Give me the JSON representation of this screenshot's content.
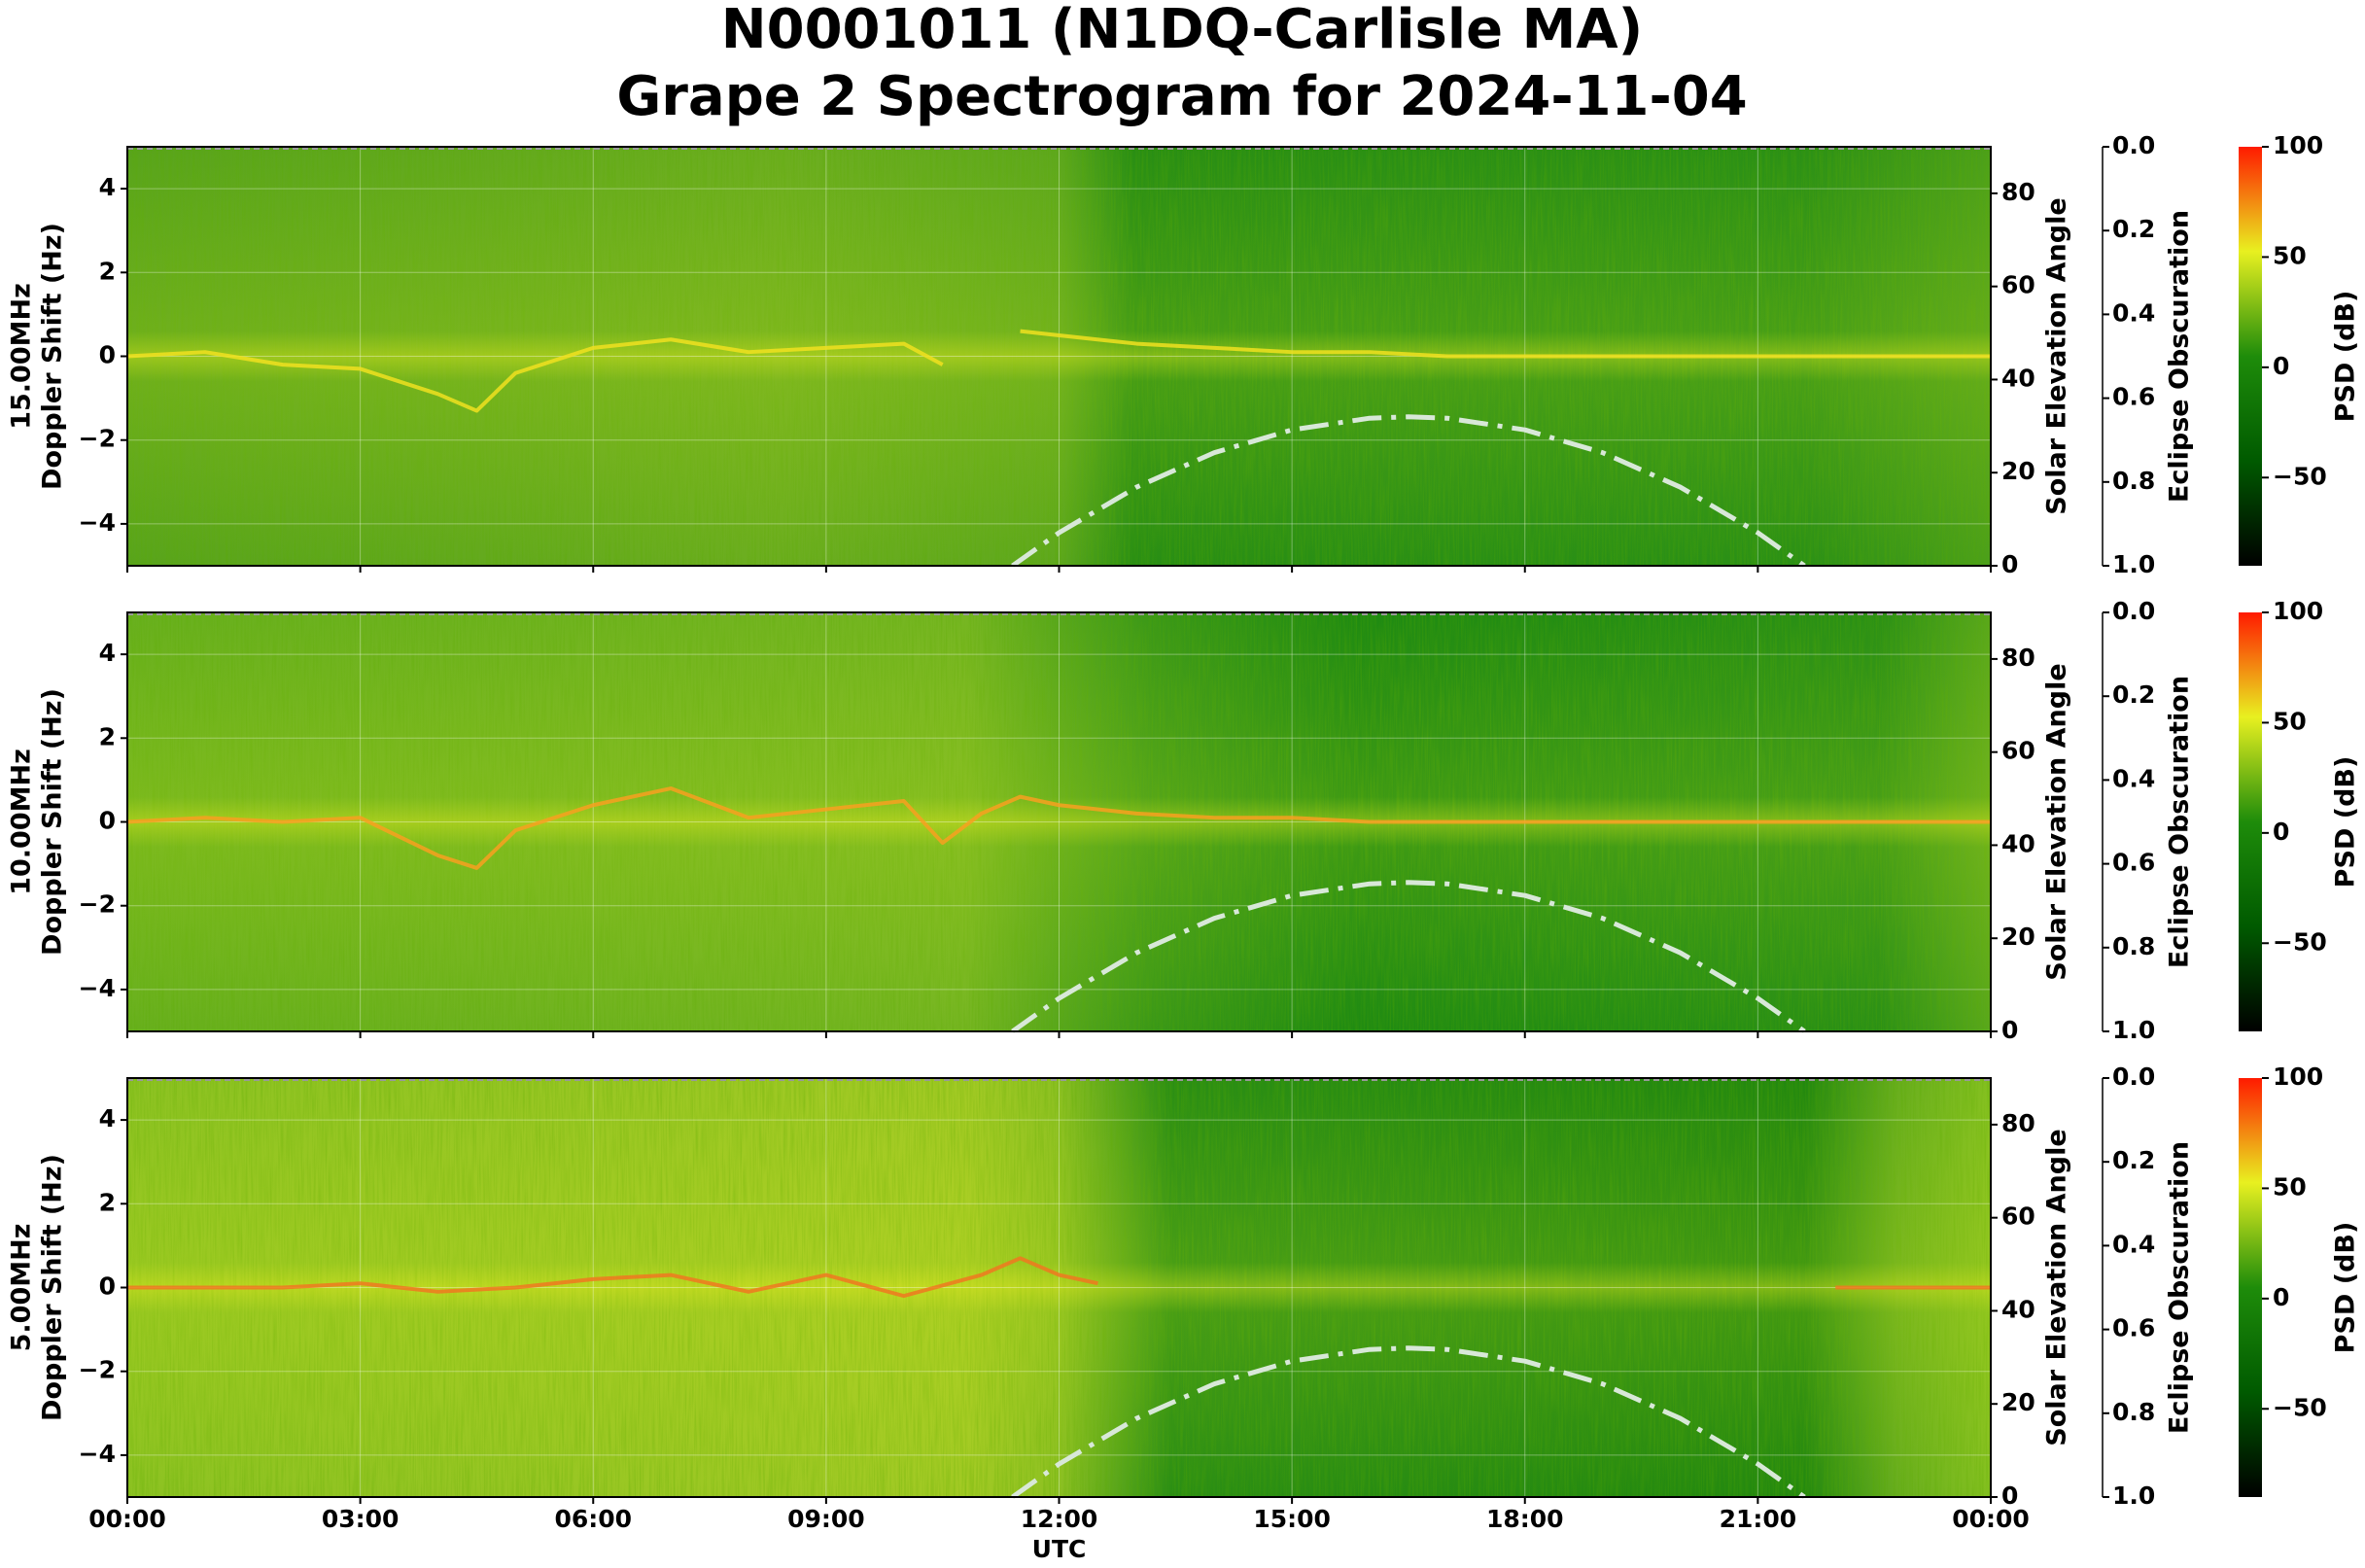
{
  "title": [
    "N0001011 (N1DQ-Carlisle MA)",
    "Grape 2 Spectrogram for 2024-11-04"
  ],
  "x_axis": {
    "label": "UTC",
    "lim": [
      0,
      24
    ],
    "ticks": [
      {
        "value": 0,
        "label": "00:00"
      },
      {
        "value": 3,
        "label": "03:00"
      },
      {
        "value": 6,
        "label": "06:00"
      },
      {
        "value": 9,
        "label": "09:00"
      },
      {
        "value": 12,
        "label": "12:00"
      },
      {
        "value": 15,
        "label": "15:00"
      },
      {
        "value": 18,
        "label": "18:00"
      },
      {
        "value": 21,
        "label": "21:00"
      },
      {
        "value": 24,
        "label": "00:00"
      }
    ]
  },
  "chart_data": [
    {
      "type": "spectrogram",
      "ylabel": [
        "15.00MHz",
        "Doppler Shift (Hz)"
      ],
      "ylim": [
        -5,
        5
      ],
      "yticks": [
        {
          "value": -4,
          "label": "−4"
        },
        {
          "value": -2,
          "label": "−2"
        },
        0,
        2,
        4
      ],
      "y2label": "Solar Elevation Angle",
      "y2lim": [
        0,
        90
      ],
      "y2ticks": [
        0,
        20,
        40,
        60,
        80
      ],
      "eclipse_label": "Eclipse Obscuration",
      "eclipse_lim": [
        0,
        1
      ],
      "eclipse_inverted": true,
      "eclipse_ticks": [
        {
          "value": 0,
          "label": "0.0"
        },
        0.2,
        0.4,
        0.6,
        0.8,
        {
          "value": 1,
          "label": "1.0"
        }
      ],
      "colorbar_label": "PSD (dB)",
      "clim": [
        -90,
        100
      ],
      "cticks": [
        {
          "value": -50,
          "label": "−50"
        },
        0,
        50,
        100
      ],
      "colormap": [
        "#000000",
        "#005a00",
        "#1e8c0a",
        "#e8f020",
        "#ff1a00"
      ],
      "series": [
        {
          "color": "#f0e020",
          "axis": "y",
          "x": [
            0,
            1,
            2,
            3,
            4,
            4.5,
            5,
            6,
            7,
            8,
            9,
            10,
            10.5,
            11,
            11.5,
            12,
            13,
            14,
            15,
            16,
            17,
            18,
            19,
            20,
            21,
            22,
            23,
            24
          ],
          "values": [
            0,
            0.1,
            -0.2,
            -0.3,
            -0.9,
            -1.3,
            -0.4,
            0.2,
            0.4,
            0.1,
            0.2,
            0.3,
            -0.2,
            null,
            0.6,
            0.5,
            0.3,
            0.2,
            0.1,
            0.1,
            0,
            0,
            0,
            0,
            0,
            0,
            0,
            0
          ]
        },
        {
          "color": "#d8e8d8",
          "axis": "y2",
          "style": "dash-dot",
          "x": [
            11.4,
            12,
            13,
            14,
            15,
            16,
            16.5,
            17,
            18,
            19,
            20,
            21,
            21.6
          ],
          "values": [
            0,
            7.1,
            16.9,
            24.3,
            29.2,
            31.7,
            32,
            31.7,
            29.2,
            24.3,
            16.9,
            7.1,
            0
          ]
        }
      ]
    },
    {
      "type": "spectrogram",
      "ylabel": [
        "10.00MHz",
        "Doppler Shift (Hz)"
      ],
      "ylim": [
        -5,
        5
      ],
      "yticks": [
        {
          "value": -4,
          "label": "−4"
        },
        {
          "value": -2,
          "label": "−2"
        },
        0,
        2,
        4
      ],
      "y2label": "Solar Elevation Angle",
      "y2lim": [
        0,
        90
      ],
      "y2ticks": [
        0,
        20,
        40,
        60,
        80
      ],
      "eclipse_label": "Eclipse Obscuration",
      "eclipse_lim": [
        0,
        1
      ],
      "eclipse_inverted": true,
      "eclipse_ticks": [
        {
          "value": 0,
          "label": "0.0"
        },
        0.2,
        0.4,
        0.6,
        0.8,
        {
          "value": 1,
          "label": "1.0"
        }
      ],
      "colorbar_label": "PSD (dB)",
      "clim": [
        -90,
        100
      ],
      "cticks": [
        {
          "value": -50,
          "label": "−50"
        },
        0,
        50,
        100
      ],
      "colormap": [
        "#000000",
        "#005a00",
        "#1e8c0a",
        "#e8f020",
        "#ff1a00"
      ],
      "series": [
        {
          "color": "#f8a020",
          "axis": "y",
          "x": [
            0,
            1,
            2,
            3,
            4,
            4.5,
            5,
            6,
            7,
            8,
            9,
            10,
            10.5,
            11,
            11.5,
            12,
            13,
            14,
            15,
            16,
            17,
            18,
            19,
            20,
            21,
            22,
            23,
            24
          ],
          "values": [
            0,
            0.1,
            0,
            0.1,
            -0.8,
            -1.1,
            -0.2,
            0.4,
            0.8,
            0.1,
            0.3,
            0.5,
            -0.5,
            0.2,
            0.6,
            0.4,
            0.2,
            0.1,
            0.1,
            0,
            0,
            0,
            0,
            0,
            0,
            0,
            0,
            0
          ]
        },
        {
          "color": "#d8e8d8",
          "axis": "y2",
          "style": "dash-dot",
          "x": [
            11.4,
            12,
            13,
            14,
            15,
            16,
            16.5,
            17,
            18,
            19,
            20,
            21,
            21.6
          ],
          "values": [
            0,
            7.1,
            16.9,
            24.3,
            29.2,
            31.7,
            32,
            31.7,
            29.2,
            24.3,
            16.9,
            7.1,
            0
          ]
        }
      ]
    },
    {
      "type": "spectrogram",
      "ylabel": [
        "5.00MHz",
        "Doppler Shift (Hz)"
      ],
      "ylim": [
        -5,
        5
      ],
      "yticks": [
        {
          "value": -4,
          "label": "−4"
        },
        {
          "value": -2,
          "label": "−2"
        },
        0,
        2,
        4
      ],
      "y2label": "Solar Elevation Angle",
      "y2lim": [
        0,
        90
      ],
      "y2ticks": [
        0,
        20,
        40,
        60,
        80
      ],
      "eclipse_label": "Eclipse Obscuration",
      "eclipse_lim": [
        0,
        1
      ],
      "eclipse_inverted": true,
      "eclipse_ticks": [
        {
          "value": 0,
          "label": "0.0"
        },
        0.2,
        0.4,
        0.6,
        0.8,
        {
          "value": 1,
          "label": "1.0"
        }
      ],
      "colorbar_label": "PSD (dB)",
      "clim": [
        -90,
        100
      ],
      "cticks": [
        {
          "value": -50,
          "label": "−50"
        },
        0,
        50,
        100
      ],
      "colormap": [
        "#000000",
        "#005a00",
        "#1e8c0a",
        "#e8f020",
        "#ff1a00"
      ],
      "series": [
        {
          "color": "#f07820",
          "axis": "y",
          "x": [
            0,
            1,
            2,
            3,
            4,
            5,
            6,
            7,
            8,
            9,
            10,
            11,
            11.5,
            12,
            12.5,
            13,
            22,
            23,
            24
          ],
          "values": [
            0,
            0,
            0,
            0.1,
            -0.1,
            0,
            0.2,
            0.3,
            -0.1,
            0.3,
            -0.2,
            0.3,
            0.7,
            0.3,
            0.1,
            null,
            0,
            0,
            0
          ]
        },
        {
          "color": "#d8e8d8",
          "axis": "y2",
          "style": "dash-dot",
          "x": [
            11.4,
            12,
            13,
            14,
            15,
            16,
            16.5,
            17,
            18,
            19,
            20,
            21,
            21.6
          ],
          "values": [
            0,
            7.1,
            16.9,
            24.3,
            29.2,
            31.7,
            32,
            31.7,
            29.2,
            24.3,
            16.9,
            7.1,
            0
          ]
        }
      ]
    }
  ]
}
